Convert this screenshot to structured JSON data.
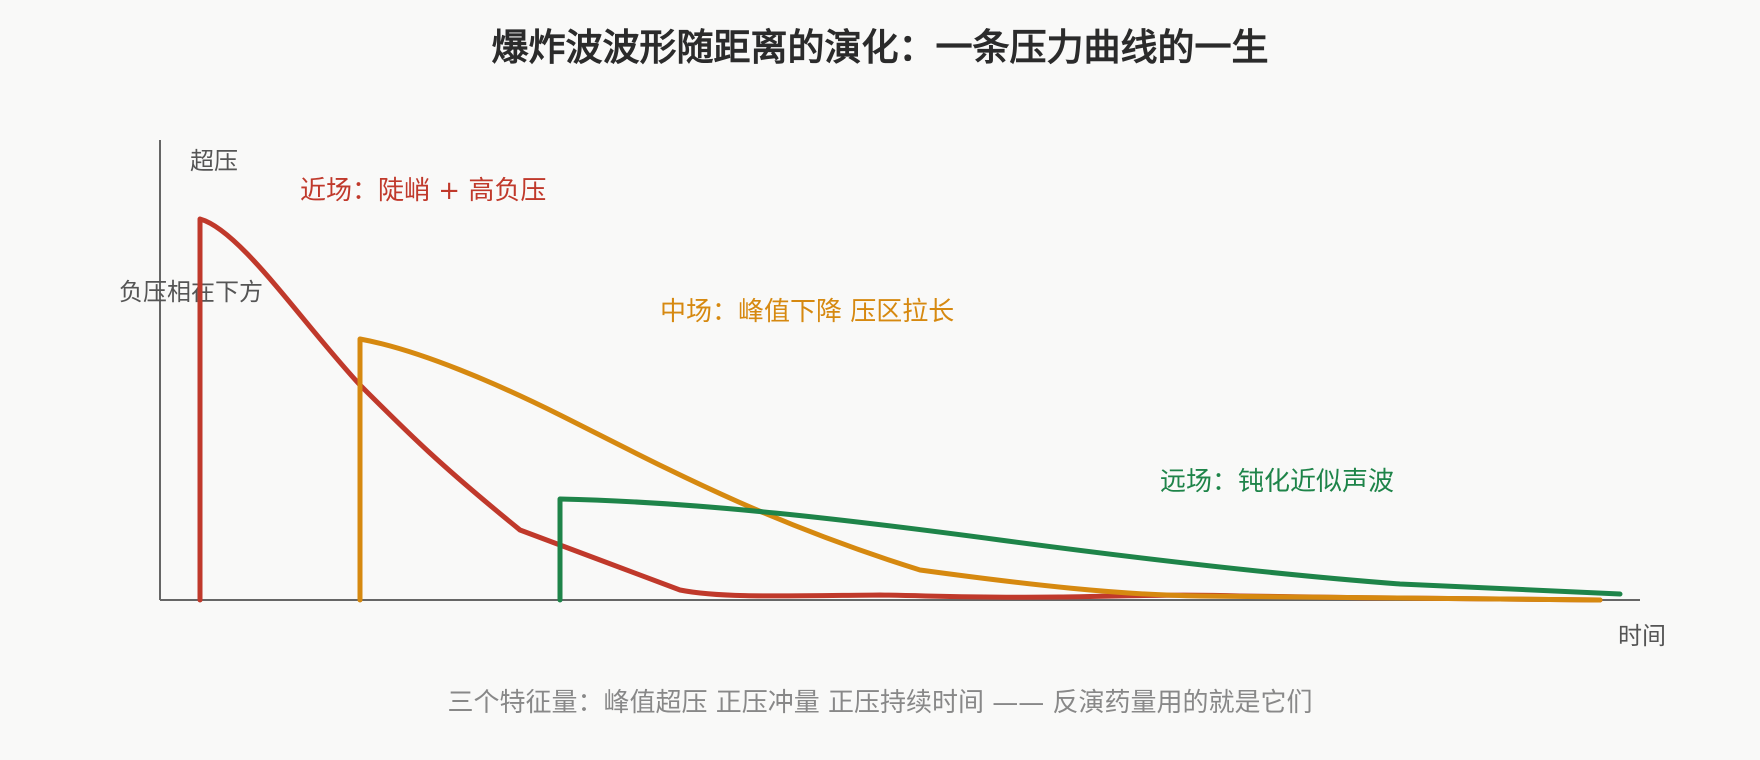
{
  "title": "爆炸波波形随距离的演化：一条压力曲线的一生",
  "axes": {
    "y_label": "超压",
    "x_label": "时间",
    "side_note": "负压相在下方"
  },
  "curves": [
    {
      "key": "near",
      "label": "近场：陡峭 + 高负压",
      "color": "#c0392b"
    },
    {
      "key": "mid",
      "label": "中场：峰值下降 压区拉长",
      "color": "#d68910"
    },
    {
      "key": "far",
      "label": "远场：钝化近似声波",
      "color": "#1e8449"
    }
  ],
  "footnote": "三个特征量：峰值超压 正压冲量 正压持续时间 —— 反演药量用的就是它们"
}
